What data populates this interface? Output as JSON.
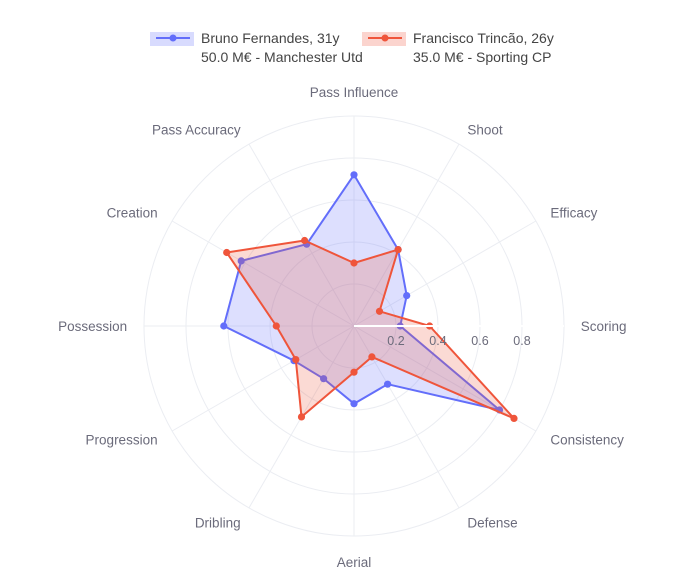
{
  "chart_data": {
    "type": "radar",
    "axes": [
      "Pass Influence",
      "Shoot",
      "Efficacy",
      "Scoring",
      "Consistency",
      "Defense",
      "Aerial",
      "Dribling",
      "Progression",
      "Possession",
      "Creation",
      "Pass Accuracy"
    ],
    "radial_ticks": [
      "0.2",
      "0.4",
      "0.6",
      "0.8"
    ],
    "radial_range": [
      0,
      1
    ],
    "series": [
      {
        "name": "Bruno Fernandes, 31y",
        "subtitle": "50.0 M€ - Manchester Utd",
        "color": "#636efa",
        "values": [
          0.72,
          0.42,
          0.29,
          0.22,
          0.8,
          0.32,
          0.37,
          0.29,
          0.33,
          0.62,
          0.62,
          0.45
        ]
      },
      {
        "name": "Francisco Trincão, 26y",
        "subtitle": "35.0 M€ - Sporting CP",
        "color": "#ef553b",
        "values": [
          0.3,
          0.42,
          0.14,
          0.36,
          0.88,
          0.17,
          0.22,
          0.5,
          0.32,
          0.37,
          0.7,
          0.47
        ]
      }
    ],
    "legend_position": "top"
  }
}
